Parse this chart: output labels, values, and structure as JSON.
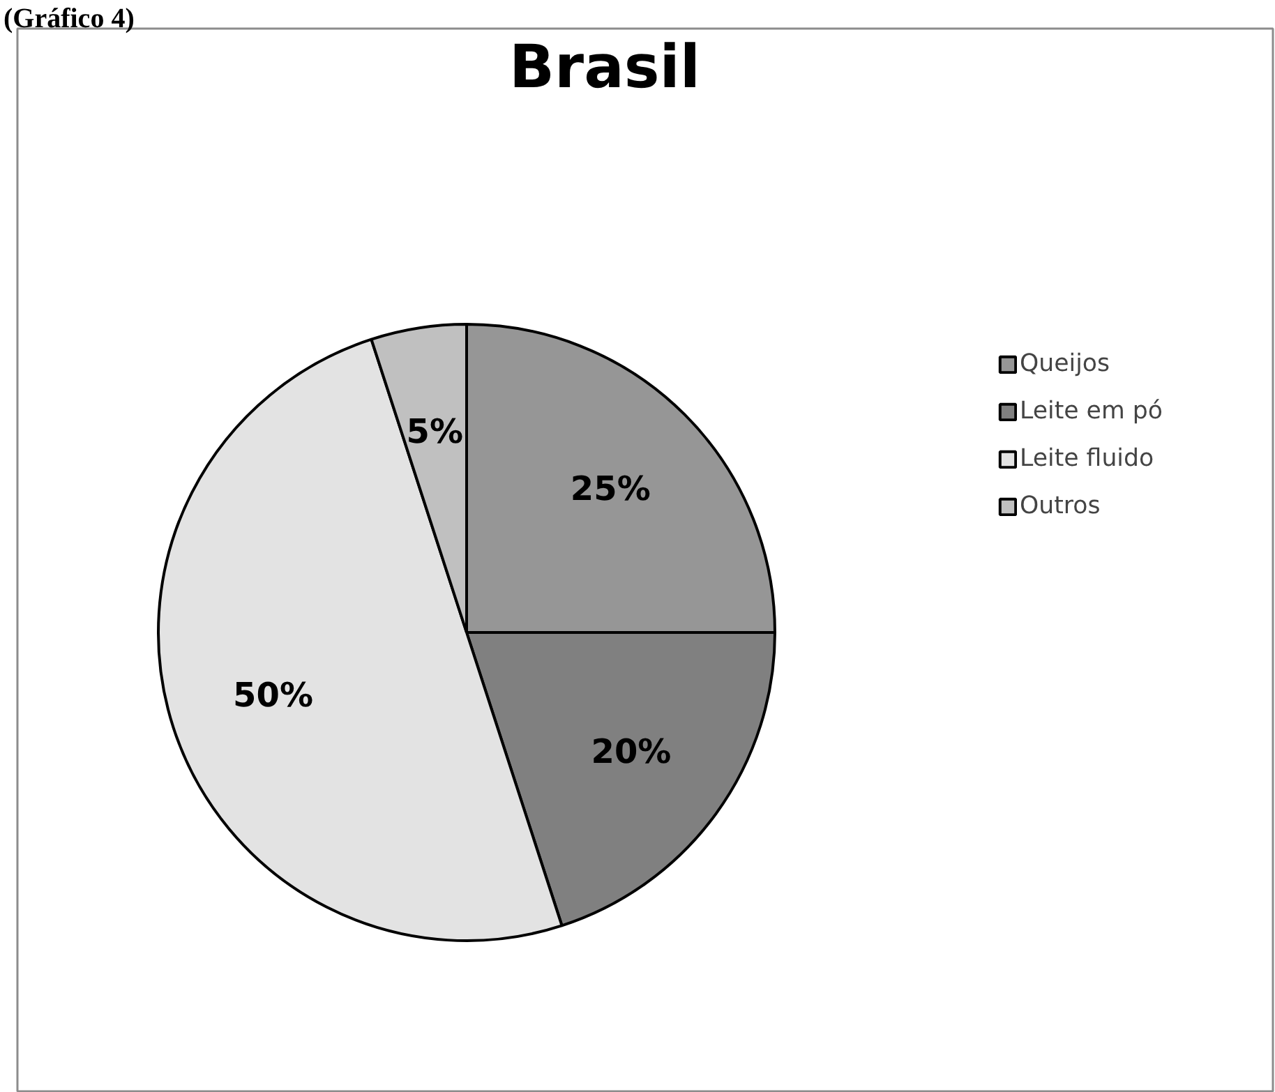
{
  "chart_data": {
    "type": "pie",
    "title": "Brasil",
    "categories": [
      "Queijos",
      "Leite em pó",
      "Leite fluido",
      "Outros"
    ],
    "values": [
      25,
      20,
      50,
      5
    ],
    "colors": [
      "#969696",
      "#808080",
      "#e3e3e3",
      "#c0c0c0"
    ],
    "value_labels": [
      "25%",
      "20%",
      "50%",
      "5%"
    ],
    "legend": "right",
    "annotations": [
      "(Gráfico 4)"
    ]
  }
}
